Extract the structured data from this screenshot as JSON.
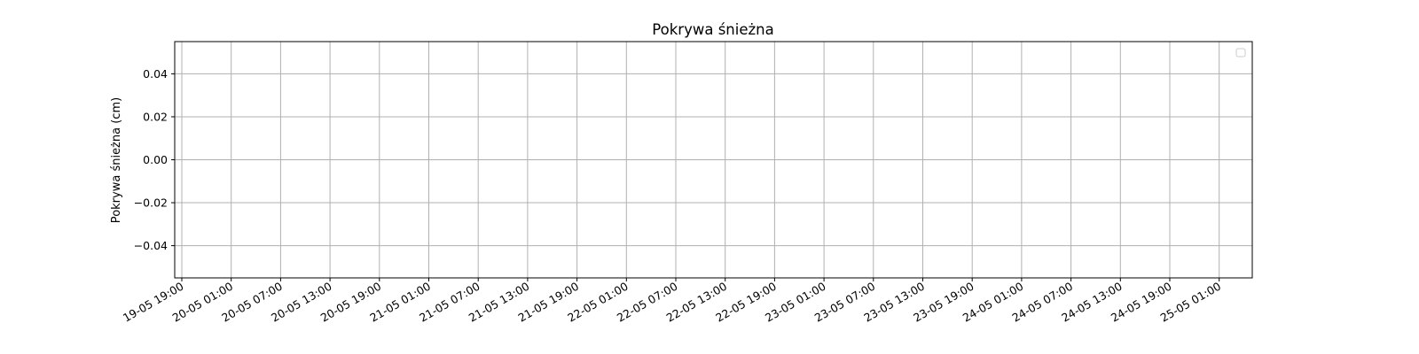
{
  "chart_data": {
    "type": "line",
    "title": "Pokrywa śnieżna",
    "xlabel": "",
    "ylabel": "Pokrywa śnieżna (cm)",
    "x": [],
    "series": [],
    "x_ticks": [
      "19-05 19:00",
      "20-05 01:00",
      "20-05 07:00",
      "20-05 13:00",
      "20-05 19:00",
      "21-05 01:00",
      "21-05 07:00",
      "21-05 13:00",
      "21-05 19:00",
      "22-05 01:00",
      "22-05 07:00",
      "22-05 13:00",
      "22-05 19:00",
      "23-05 01:00",
      "23-05 07:00",
      "23-05 13:00",
      "23-05 19:00",
      "24-05 01:00",
      "24-05 07:00",
      "24-05 13:00",
      "24-05 19:00",
      "25-05 01:00"
    ],
    "y_ticks": [
      0.04,
      0.02,
      0.0,
      -0.02,
      -0.04
    ],
    "y_tick_labels": [
      "0.04",
      "0.02",
      "0.00",
      "−0.02",
      "−0.04"
    ],
    "ylim": [
      -0.055,
      0.055
    ],
    "grid": true,
    "legend": "top-right",
    "colors": {
      "grid": "#b0b0b0",
      "axes": "#000000",
      "background": "#ffffff"
    }
  }
}
